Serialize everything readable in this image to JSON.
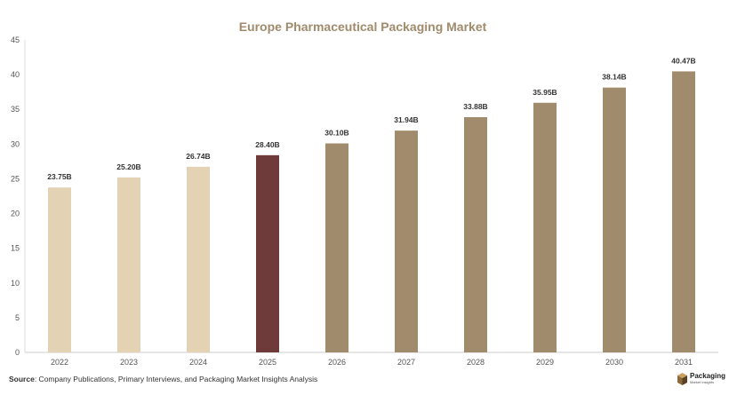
{
  "chart_data": {
    "type": "bar",
    "title": "Europe Pharmaceutical Packaging Market",
    "categories": [
      "2022",
      "2023",
      "2024",
      "2025",
      "2026",
      "2027",
      "2028",
      "2029",
      "2030",
      "2031"
    ],
    "values": [
      23.75,
      25.2,
      26.74,
      28.4,
      30.1,
      31.94,
      33.88,
      35.95,
      38.14,
      40.47
    ],
    "value_labels": [
      "23.75B",
      "25.20B",
      "26.74B",
      "28.40B",
      "30.10B",
      "31.94B",
      "33.88B",
      "35.95B",
      "38.14B",
      "40.47B"
    ],
    "bar_colors": [
      "#e3d2b4",
      "#e3d2b4",
      "#e3d2b4",
      "#6e3a3a",
      "#a08b6c",
      "#a08b6c",
      "#a08b6c",
      "#a08b6c",
      "#a08b6c",
      "#a08b6c"
    ],
    "title_color": "#a08b6c",
    "ylim": [
      0,
      45
    ],
    "yticks": [
      0,
      5,
      10,
      15,
      20,
      25,
      30,
      35,
      40,
      45
    ],
    "grid": false,
    "xlabel": "",
    "ylabel": ""
  },
  "source": {
    "label": "Source",
    "text": ": Company Publications, Primary Interviews, and Packaging Market Insights Analysis"
  },
  "logo": {
    "name": "Packaging",
    "tagline": "Market Insights",
    "icon": "box-icon"
  }
}
